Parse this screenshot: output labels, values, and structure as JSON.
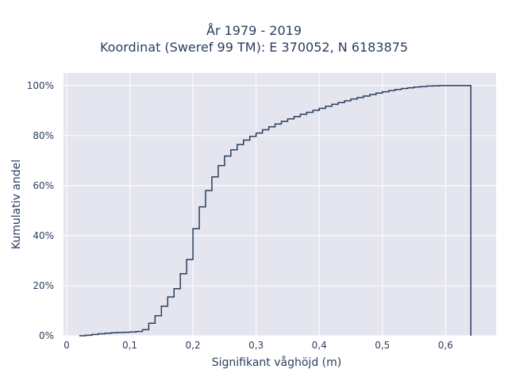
{
  "chart": {
    "title_line1": "År 1979 - 2019",
    "title_line2": "Koordinat (Sweref 99 TM): E 370052, N 6183875",
    "xlabel": "Signifikant våghöjd (m)",
    "ylabel": "Kumulativ andel"
  },
  "colors": {
    "plot_background": "#E5E5EF",
    "gridline": "#FFFFFF",
    "line": "#2A3F5F"
  },
  "chart_data": {
    "type": "line",
    "line_shape": "step",
    "title": "År 1979 - 2019 / Koordinat (Sweref 99 TM): E 370052, N 6183875",
    "xlabel": "Signifikant våghöjd (m)",
    "ylabel": "Kumulativ andel",
    "xlim": [
      -0.005,
      0.68
    ],
    "ylim": [
      0,
      1.05
    ],
    "x_ticks": [
      0,
      0.1,
      0.2,
      0.3,
      0.4,
      0.5,
      0.6
    ],
    "x_tick_labels": [
      "0",
      "0,1",
      "0,2",
      "0,3",
      "0,4",
      "0,5",
      "0,6"
    ],
    "y_ticks": [
      0,
      0.2,
      0.4,
      0.6,
      0.8,
      1.0
    ],
    "y_tick_labels": [
      "0%",
      "20%",
      "40%",
      "60%",
      "80%",
      "100%"
    ],
    "grid": true,
    "legend": false,
    "series": [
      {
        "x": [
          0.02,
          0.03,
          0.04,
          0.05,
          0.06,
          0.07,
          0.08,
          0.09,
          0.1,
          0.11,
          0.12,
          0.13,
          0.14,
          0.15,
          0.16,
          0.17,
          0.18,
          0.19,
          0.2,
          0.21,
          0.22,
          0.23,
          0.24,
          0.25,
          0.26,
          0.27,
          0.28,
          0.29,
          0.3,
          0.31,
          0.32,
          0.33,
          0.34,
          0.35,
          0.36,
          0.37,
          0.38,
          0.39,
          0.4,
          0.41,
          0.42,
          0.43,
          0.44,
          0.45,
          0.46,
          0.47,
          0.48,
          0.49,
          0.5,
          0.51,
          0.52,
          0.53,
          0.54,
          0.55,
          0.56,
          0.57,
          0.58,
          0.59,
          0.6,
          0.61,
          0.62,
          0.63,
          0.64
        ],
        "y": [
          0.0,
          0.002,
          0.005,
          0.008,
          0.01,
          0.012,
          0.013,
          0.014,
          0.015,
          0.017,
          0.024,
          0.05,
          0.08,
          0.118,
          0.155,
          0.188,
          0.248,
          0.305,
          0.428,
          0.515,
          0.58,
          0.635,
          0.68,
          0.718,
          0.743,
          0.764,
          0.782,
          0.797,
          0.81,
          0.823,
          0.835,
          0.846,
          0.857,
          0.867,
          0.876,
          0.885,
          0.893,
          0.901,
          0.909,
          0.917,
          0.925,
          0.932,
          0.939,
          0.946,
          0.952,
          0.958,
          0.964,
          0.97,
          0.975,
          0.98,
          0.984,
          0.988,
          0.991,
          0.994,
          0.996,
          0.998,
          0.999,
          1.0,
          1.0,
          1.0,
          1.0,
          1.0,
          0.0
        ]
      }
    ]
  }
}
